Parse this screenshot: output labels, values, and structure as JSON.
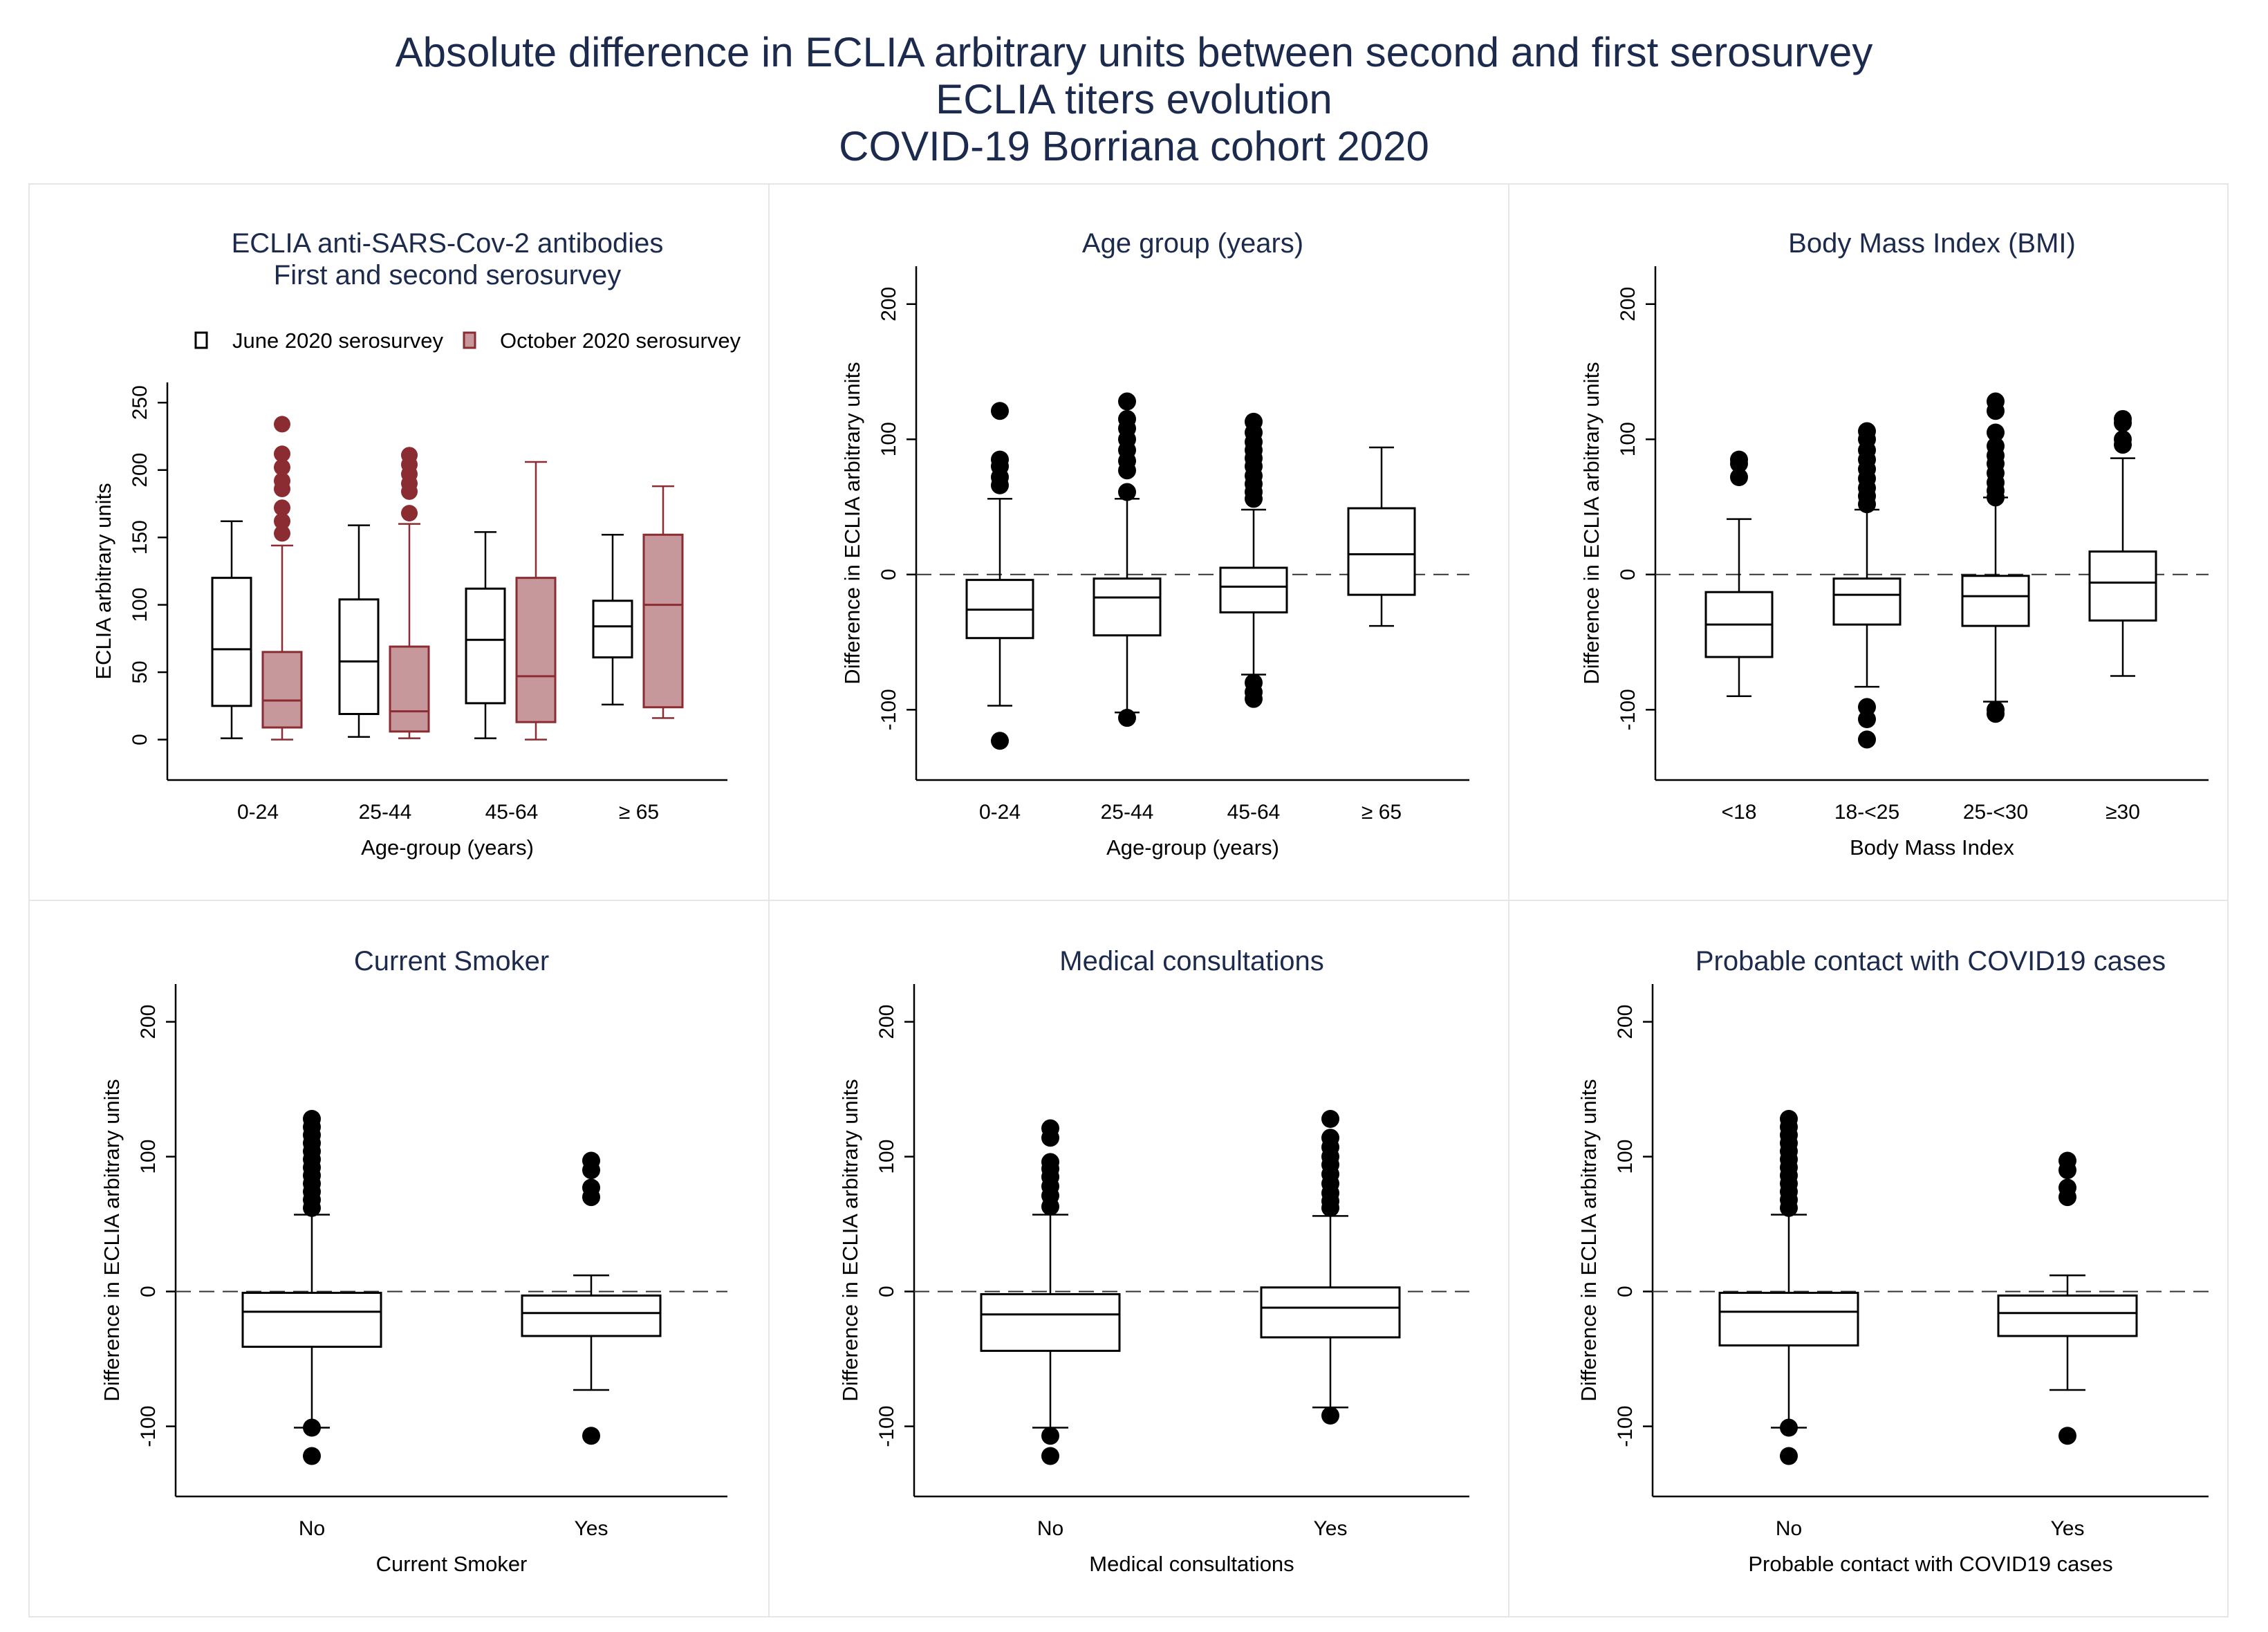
{
  "figure": {
    "title_lines": [
      "Absolute difference in ECLIA arbitrary units between second and first serosurvey",
      "ECLIA titers evolution",
      "COVID-19 Borriana cohort 2020"
    ]
  },
  "colors": {
    "june": "#000000",
    "october_stroke": "#8b2c33",
    "october_fill": "#c6979b",
    "title": "#1c2b4d"
  },
  "chart_data": [
    {
      "type": "box",
      "title_lines": [
        "ECLIA anti-SARS-Cov-2 antibodies",
        "First and second serosurvey"
      ],
      "legend": [
        "June 2020 serosurvey",
        "October 2020 serosurvey"
      ],
      "ylabel": "ECLIA arbitrary units",
      "xlabel": "Age-group (years)",
      "ylim": [
        -30,
        265
      ],
      "yticks": [
        0,
        50,
        100,
        150,
        200,
        250
      ],
      "zero_line": false,
      "categories": [
        "0-24",
        "25-44",
        "45-64",
        "≥ 65"
      ],
      "series": [
        {
          "name": "June 2020 serosurvey",
          "style": "june",
          "boxes": [
            {
              "low": 1,
              "q1": 25,
              "median": 67,
              "q3": 120,
              "high": 162,
              "outliers": []
            },
            {
              "low": 2,
              "q1": 19,
              "median": 58,
              "q3": 104,
              "high": 159,
              "outliers": []
            },
            {
              "low": 1,
              "q1": 27,
              "median": 74,
              "q3": 112,
              "high": 154,
              "outliers": []
            },
            {
              "low": 26,
              "q1": 61,
              "median": 84,
              "q3": 103,
              "high": 152,
              "outliers": []
            }
          ]
        },
        {
          "name": "October 2020 serosurvey",
          "style": "october",
          "boxes": [
            {
              "low": 0,
              "q1": 9,
              "median": 29,
              "q3": 65,
              "high": 144,
              "outliers": [
                234,
                212,
                202,
                192,
                186,
                172,
                162,
                153
              ]
            },
            {
              "low": 1,
              "q1": 6,
              "median": 21,
              "q3": 69,
              "high": 160,
              "outliers": [
                211,
                204,
                197,
                190,
                184,
                168
              ]
            },
            {
              "low": 0,
              "q1": 13,
              "median": 47,
              "q3": 120,
              "high": 206,
              "outliers": []
            },
            {
              "low": 16,
              "q1": 24,
              "median": 100,
              "q3": 152,
              "high": 188,
              "outliers": []
            }
          ]
        }
      ]
    },
    {
      "type": "box",
      "title_lines": [
        "Age group (years)"
      ],
      "ylabel": "Difference in ECLIA arbitrary units",
      "xlabel": "Age-group (years)",
      "ylim": [
        -152,
        228
      ],
      "yticks": [
        -100,
        0,
        100,
        200
      ],
      "zero_line": true,
      "categories": [
        "0-24",
        "25-44",
        "45-64",
        "≥ 65"
      ],
      "series": [
        {
          "name": "Difference",
          "style": "june",
          "boxes": [
            {
              "low": -97,
              "q1": -47,
              "median": -26,
              "q3": -4,
              "high": 56,
              "outliers": [
                121,
                85,
                80,
                72,
                66,
                -123
              ]
            },
            {
              "low": -102,
              "q1": -45,
              "median": -17,
              "q3": -3,
              "high": 56,
              "outliers": [
                128,
                115,
                108,
                100,
                92,
                84,
                77,
                61,
                -106
              ]
            },
            {
              "low": -74,
              "q1": -28,
              "median": -9,
              "q3": 5,
              "high": 48,
              "outliers": [
                113,
                105,
                98,
                92,
                86,
                80,
                73,
                67,
                61,
                56,
                -80,
                -87,
                -92
              ]
            },
            {
              "low": -38,
              "q1": -15,
              "median": 15,
              "q3": 49,
              "high": 94,
              "outliers": []
            }
          ]
        }
      ]
    },
    {
      "type": "box",
      "title_lines": [
        "Body Mass Index (BMI)"
      ],
      "ylabel": "Difference in ECLIA arbitrary units",
      "xlabel": "Body Mass Index",
      "ylim": [
        -152,
        228
      ],
      "yticks": [
        -100,
        0,
        100,
        200
      ],
      "zero_line": true,
      "categories": [
        "<18",
        "18-<25",
        "25-<30",
        "≥30"
      ],
      "series": [
        {
          "name": "Difference",
          "style": "june",
          "boxes": [
            {
              "low": -90,
              "q1": -61,
              "median": -37,
              "q3": -13,
              "high": 41,
              "outliers": [
                85,
                82,
                72
              ]
            },
            {
              "low": -83,
              "q1": -37,
              "median": -15,
              "q3": -3,
              "high": 48,
              "outliers": [
                106,
                100,
                92,
                85,
                78,
                71,
                64,
                58,
                52,
                -98,
                -107,
                -122
              ]
            },
            {
              "low": -94,
              "q1": -38,
              "median": -16,
              "q3": -1,
              "high": 57,
              "outliers": [
                128,
                121,
                105,
                95,
                88,
                82,
                75,
                68,
                62,
                57,
                -100,
                -103
              ]
            },
            {
              "low": -75,
              "q1": -34,
              "median": -6,
              "q3": 17,
              "high": 86,
              "outliers": [
                115,
                112,
                100,
                96
              ]
            }
          ]
        }
      ]
    },
    {
      "type": "box",
      "title_lines": [
        "Current Smoker"
      ],
      "ylabel": "Difference in ECLIA arbitrary units",
      "xlabel": "Current Smoker",
      "ylim": [
        -152,
        228
      ],
      "yticks": [
        -100,
        0,
        100,
        200
      ],
      "zero_line": true,
      "categories": [
        "No",
        "Yes"
      ],
      "series": [
        {
          "name": "Difference",
          "style": "june",
          "boxes": [
            {
              "low": -101,
              "q1": -41,
              "median": -15,
              "q3": -1,
              "high": 57,
              "outliers": [
                128,
                122,
                116,
                110,
                104,
                98,
                92,
                86,
                80,
                74,
                68,
                62,
                -101,
                -122
              ]
            },
            {
              "low": -73,
              "q1": -33,
              "median": -16,
              "q3": -3,
              "high": 12,
              "outliers": [
                97,
                90,
                77,
                70,
                -107
              ]
            }
          ]
        }
      ]
    },
    {
      "type": "box",
      "title_lines": [
        "Medical consultations"
      ],
      "ylabel": "Difference in ECLIA arbitrary units",
      "xlabel": "Medical consultations",
      "ylim": [
        -152,
        228
      ],
      "yticks": [
        -100,
        0,
        100,
        200
      ],
      "zero_line": true,
      "categories": [
        "No",
        "Yes"
      ],
      "series": [
        {
          "name": "Difference",
          "style": "june",
          "boxes": [
            {
              "low": -101,
              "q1": -44,
              "median": -17,
              "q3": -2,
              "high": 57,
              "outliers": [
                121,
                114,
                96,
                91,
                85,
                78,
                71,
                63,
                -107,
                -122
              ]
            },
            {
              "low": -86,
              "q1": -34,
              "median": -12,
              "q3": 3,
              "high": 56,
              "outliers": [
                128,
                114,
                107,
                100,
                94,
                87,
                80,
                73,
                67,
                62,
                -92
              ]
            }
          ]
        }
      ]
    },
    {
      "type": "box",
      "title_lines": [
        "Probable contact with COVID19 cases"
      ],
      "ylabel": "Difference in ECLIA arbitrary units",
      "xlabel": "Probable contact with COVID19 cases",
      "ylim": [
        -152,
        228
      ],
      "yticks": [
        -100,
        0,
        100,
        200
      ],
      "zero_line": true,
      "categories": [
        "No",
        "Yes"
      ],
      "series": [
        {
          "name": "Difference",
          "style": "june",
          "boxes": [
            {
              "low": -101,
              "q1": -40,
              "median": -15,
              "q3": -1,
              "high": 57,
              "outliers": [
                128,
                122,
                116,
                110,
                104,
                98,
                92,
                86,
                80,
                74,
                68,
                62,
                -101,
                -122
              ]
            },
            {
              "low": -73,
              "q1": -33,
              "median": -16,
              "q3": -3,
              "high": 12,
              "outliers": [
                97,
                90,
                77,
                70,
                -107
              ]
            }
          ]
        }
      ]
    }
  ]
}
